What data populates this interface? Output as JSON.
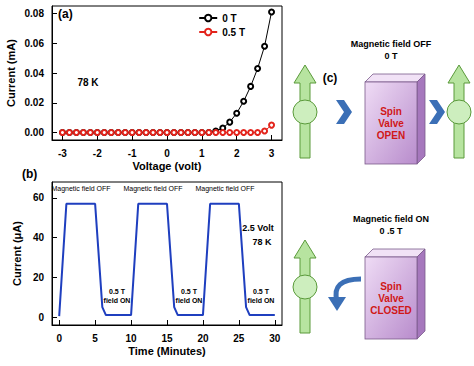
{
  "chart_data": [
    {
      "type": "line",
      "title": "(a)",
      "xlabel": "Voltage (volt)",
      "ylabel": "Current (mA)",
      "annotations": [
        "78 K"
      ],
      "x": [
        -3,
        -2.8,
        -2.6,
        -2.4,
        -2.2,
        -2,
        -1.8,
        -1.6,
        -1.4,
        -1.2,
        -1,
        -0.8,
        -0.6,
        -0.4,
        -0.2,
        0,
        0.2,
        0.4,
        0.6,
        0.8,
        1,
        1.2,
        1.4,
        1.6,
        1.8,
        2,
        2.2,
        2.4,
        2.6,
        2.8,
        3
      ],
      "series": [
        {
          "name": "0 T",
          "color": "#000000",
          "marker": "open_circle",
          "values": [
            0,
            0,
            0,
            0,
            0,
            0,
            0,
            0,
            0,
            0,
            0,
            0,
            0,
            0,
            0,
            0,
            0,
            0,
            0,
            0,
            0,
            0,
            0.001,
            0.003,
            0.007,
            0.013,
            0.021,
            0.031,
            0.043,
            0.058,
            0.081
          ]
        },
        {
          "name": "0.5 T",
          "color": "#e3241c",
          "marker": "open_circle",
          "values": [
            0,
            0,
            0,
            0,
            0,
            0,
            0,
            0,
            0,
            0,
            0,
            0,
            0,
            0,
            0,
            0,
            0,
            0,
            0,
            0,
            0,
            0,
            0,
            0,
            0,
            0,
            0,
            0,
            0,
            0.001,
            0.005
          ]
        }
      ],
      "xlim": [
        -3.3,
        3.3
      ],
      "xticks": [
        -3,
        -2,
        -1,
        0,
        1,
        2,
        3
      ],
      "ylim": [
        -0.005,
        0.085
      ],
      "yticks": [
        {
          "value": 0,
          "label": "0.00"
        },
        {
          "value": 0.02,
          "label": "0.02"
        },
        {
          "value": 0.04,
          "label": "0.04"
        },
        {
          "value": 0.06,
          "label": "0.06"
        },
        {
          "value": 0.08,
          "label": "0.08"
        }
      ],
      "legend": "upper right",
      "grid": false
    },
    {
      "type": "line",
      "title": "(b)",
      "xlabel": "Time (Minutes)",
      "ylabel": "Current (μA)",
      "annotations": [
        "Magnetic field OFF",
        "Magnetic field OFF",
        "Magnetic field OFF",
        "0.5 T\nfield ON",
        "0.5 T\nfield ON",
        "0.5 T\nfield ON",
        "2.5 Volt",
        "78 K"
      ],
      "color": "#1f3fbf",
      "x": [
        0,
        1,
        5,
        6,
        6.5,
        10,
        11,
        15,
        16,
        16.5,
        20,
        21,
        25,
        26,
        26.5,
        30
      ],
      "values": [
        0.5,
        57,
        57,
        5,
        1,
        1,
        57,
        57,
        5,
        1,
        1,
        57,
        57,
        5,
        1,
        1
      ],
      "xlim": [
        -1,
        31
      ],
      "xticks": [
        0,
        5,
        10,
        15,
        20,
        25,
        30
      ],
      "ylim": [
        -4,
        68
      ],
      "yticks": [
        0,
        20,
        40,
        60
      ],
      "grid": false
    }
  ],
  "diagram": {
    "label": "(c)",
    "states": [
      {
        "field_label": "Magnetic field OFF",
        "field_value": "0 T",
        "valve": [
          "Spin",
          "Valve",
          "OPEN"
        ]
      },
      {
        "field_label": "Magnetic field ON",
        "field_value": "0 .5 T",
        "valve": [
          "Spin",
          "Valve",
          "CLOSED"
        ]
      }
    ]
  }
}
